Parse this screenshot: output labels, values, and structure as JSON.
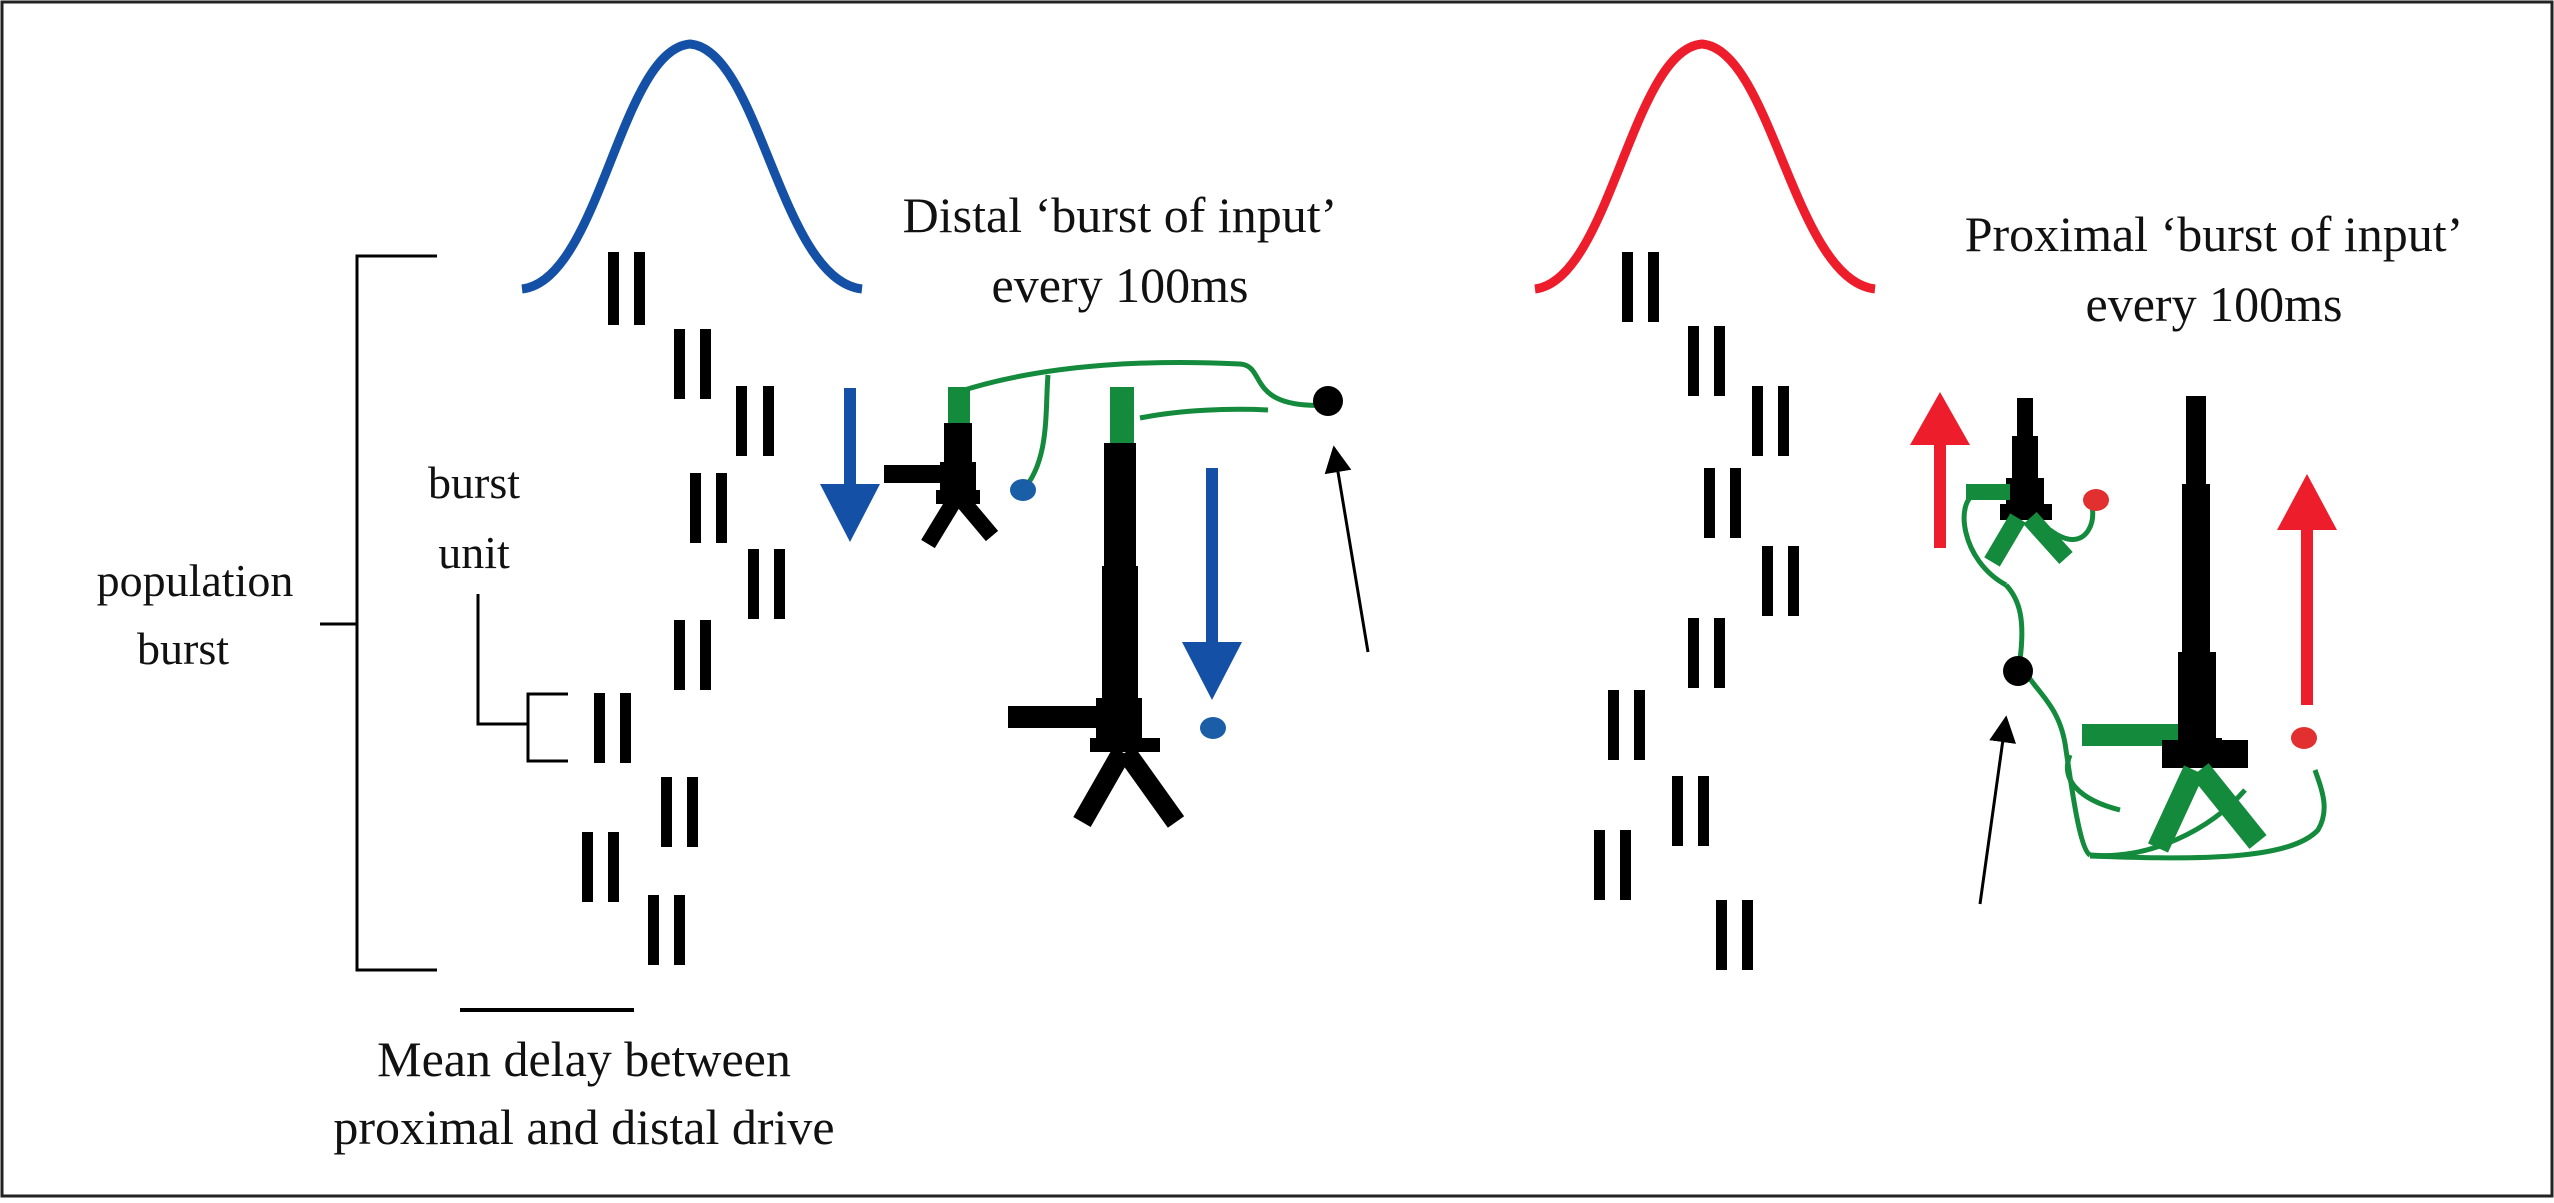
{
  "labels": {
    "population_line1": "population",
    "population_line2": "burst",
    "burst_unit_line1": "burst",
    "burst_unit_line2": "unit",
    "distal_line1": "Distal ‘burst of input’",
    "distal_line2": "every 100ms",
    "proximal_line1": "Proximal ‘burst of input’",
    "proximal_line2": "every 100ms",
    "delay_line1": "Mean delay between",
    "delay_line2": "proximal and distal drive"
  },
  "colors": {
    "distal": "#1451a6",
    "proximal": "#ee1d2b",
    "dendrite": "#138a3c",
    "neuron": "#000000",
    "cell_blue": "#1a5ea8",
    "cell_red": "#e23030",
    "frame": "#222222"
  },
  "icons": {
    "distal_arrow": "arrow-down-icon",
    "proximal_arrow": "arrow-up-icon",
    "input_pointer": "arrow-pointer-icon",
    "cell": "neuron-icon"
  }
}
